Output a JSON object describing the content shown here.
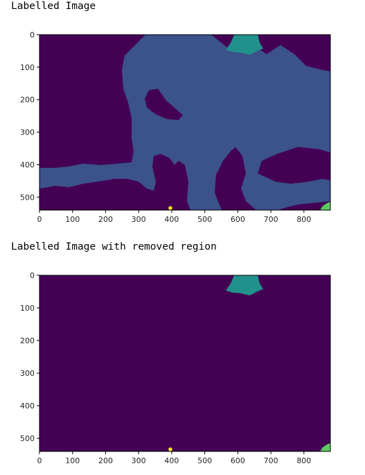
{
  "cells": [
    {
      "caption": "Labelled Image"
    },
    {
      "caption": "Labelled Image with removed region"
    }
  ],
  "colors": {
    "background_label": "#440154",
    "large_region": "#3b528b",
    "top_region": "#21918c",
    "corner_region": "#5ec962",
    "dot_region": "#fde725",
    "axis": "#000000"
  },
  "chart_data": [
    {
      "type": "heatmap",
      "title": "",
      "xlabel": "",
      "ylabel": "",
      "xlim": [
        0,
        880
      ],
      "ylim": [
        540,
        0
      ],
      "xticks": [
        "0",
        "100",
        "200",
        "300",
        "400",
        "500",
        "600",
        "700",
        "800"
      ],
      "yticks": [
        "0",
        "100",
        "200",
        "300",
        "400",
        "500"
      ],
      "grid": false,
      "regions": [
        {
          "label": 0,
          "color": "#440154",
          "desc": "background"
        },
        {
          "label": 1,
          "color": "#3b528b",
          "desc": "large connected region"
        },
        {
          "label": 2,
          "color": "#21918c",
          "desc": "top region near x=600-680, y=0-60"
        },
        {
          "label": 3,
          "color": "#5ec962",
          "desc": "bottom-right corner region"
        },
        {
          "label": 4,
          "color": "#fde725",
          "desc": "small dot near x=400, y=530"
        }
      ]
    },
    {
      "type": "heatmap",
      "title": "",
      "xlabel": "",
      "ylabel": "",
      "xlim": [
        0,
        880
      ],
      "ylim": [
        540,
        0
      ],
      "xticks": [
        "0",
        "100",
        "200",
        "300",
        "400",
        "500",
        "600",
        "700",
        "800"
      ],
      "yticks": [
        "0",
        "100",
        "200",
        "300",
        "400",
        "500"
      ],
      "grid": false,
      "regions": [
        {
          "label": 0,
          "color": "#440154",
          "desc": "background"
        },
        {
          "label": 2,
          "color": "#21918c",
          "desc": "top region near x=600-680, y=0-60"
        },
        {
          "label": 3,
          "color": "#5ec962",
          "desc": "bottom-right corner region"
        },
        {
          "label": 4,
          "color": "#fde725",
          "desc": "small dot near x=400, y=530"
        }
      ]
    }
  ]
}
